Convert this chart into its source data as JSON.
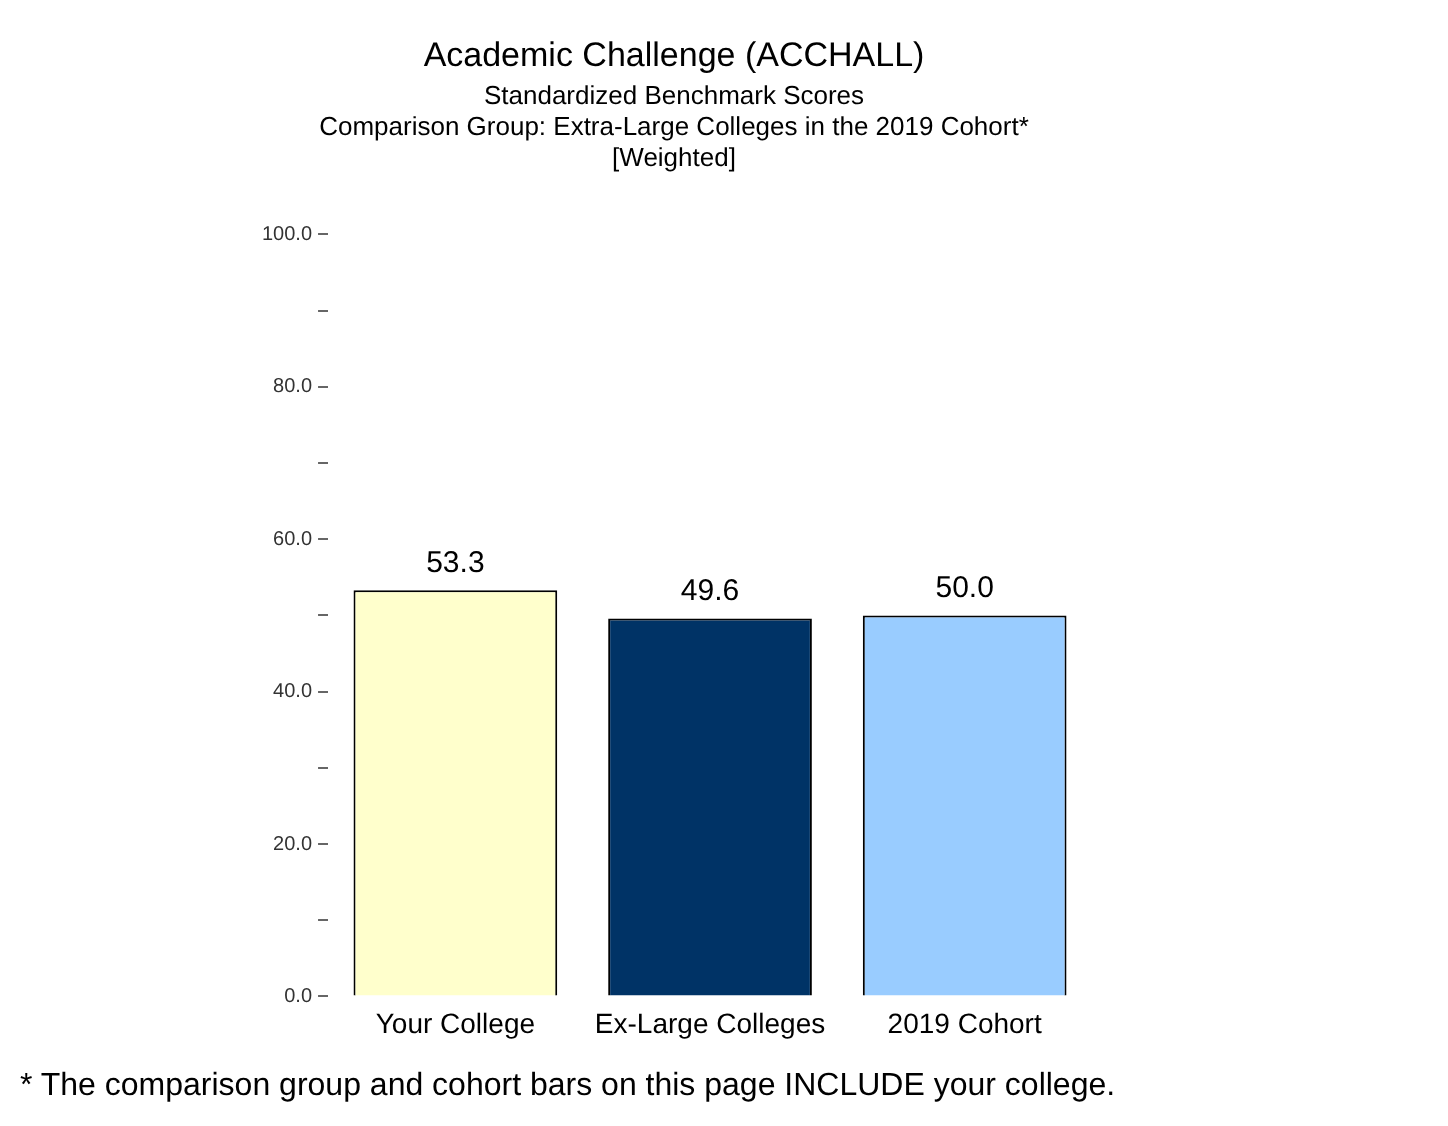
{
  "chart_data": {
    "type": "bar",
    "title": "Academic Challenge (ACCHALL)",
    "subtitle": "Standardized Benchmark Scores\nComparison Group: Extra-Large Colleges in the 2019 Cohort*\n[Weighted]",
    "categories": [
      "Your College",
      "Ex-Large Colleges",
      "2019 Cohort"
    ],
    "values": [
      53.3,
      49.6,
      50.0
    ],
    "colors": [
      "#ffffcc",
      "#003366",
      "#99ccff"
    ],
    "value_labels": [
      "53.3",
      "49.6",
      "50.0"
    ],
    "ylim": [
      0,
      100
    ],
    "yticks": [
      {
        "value": 0,
        "label": "0.0"
      },
      {
        "value": 10,
        "label": null
      },
      {
        "value": 20,
        "label": "20.0"
      },
      {
        "value": 30,
        "label": null
      },
      {
        "value": 40,
        "label": "40.0"
      },
      {
        "value": 50,
        "label": null
      },
      {
        "value": 60,
        "label": "60.0"
      },
      {
        "value": 70,
        "label": null
      },
      {
        "value": 80,
        "label": "80.0"
      },
      {
        "value": 90,
        "label": null
      },
      {
        "value": 100,
        "label": "100.0"
      }
    ],
    "grid": false,
    "legend": false,
    "annotations": [
      "* The comparison group and cohort bars on this page INCLUDE your college."
    ]
  }
}
